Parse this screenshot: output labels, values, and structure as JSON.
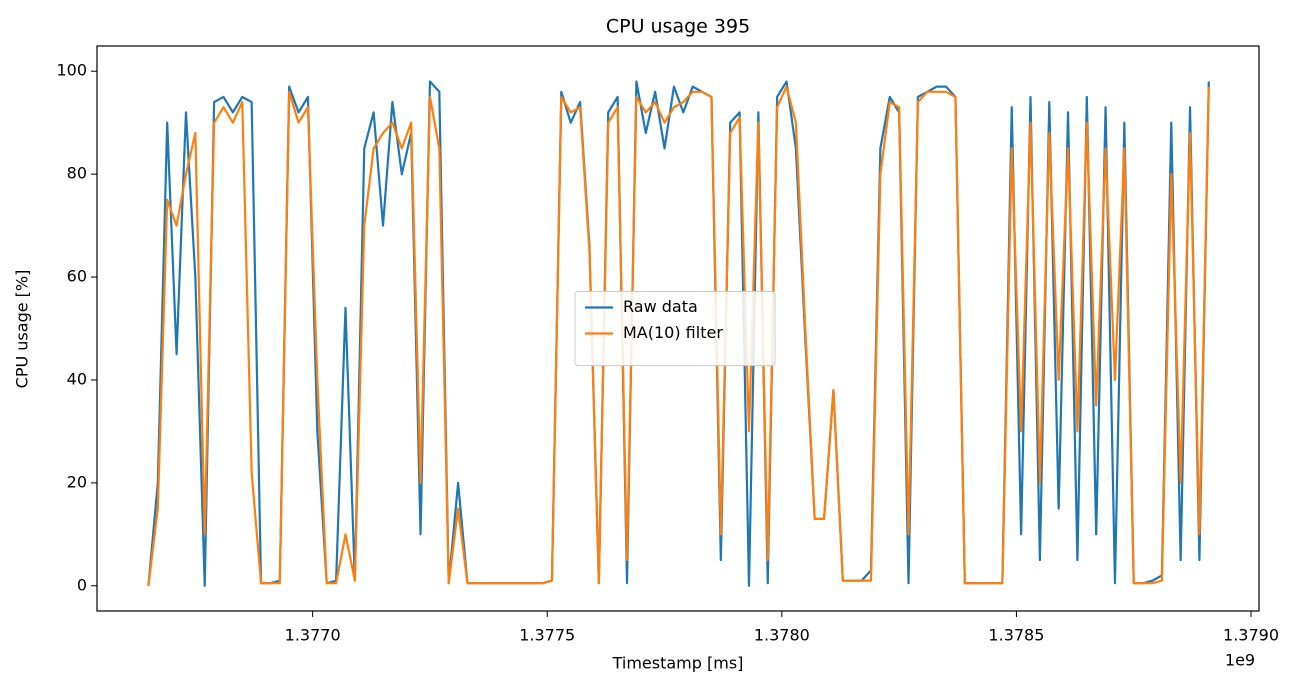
{
  "chart_data": {
    "type": "line",
    "title": "CPU usage 395",
    "x_label": "Timestamp [ms]",
    "y_label": "CPU usage [%]",
    "x_offset_label": "1e9",
    "x": [
      1376650000,
      1376670000,
      1376690000,
      1376710000,
      1376730000,
      1376750000,
      1376770000,
      1376790000,
      1376810000,
      1376830000,
      1376850000,
      1376870000,
      1376890000,
      1376910000,
      1376930000,
      1376950000,
      1376970000,
      1376990000,
      1377010000,
      1377030000,
      1377050000,
      1377070000,
      1377090000,
      1377110000,
      1377130000,
      1377150000,
      1377170000,
      1377190000,
      1377210000,
      1377230000,
      1377250000,
      1377270000,
      1377290000,
      1377310000,
      1377330000,
      1377350000,
      1377370000,
      1377390000,
      1377410000,
      1377430000,
      1377450000,
      1377470000,
      1377490000,
      1377510000,
      1377530000,
      1377550000,
      1377570000,
      1377590000,
      1377610000,
      1377630000,
      1377650000,
      1377670000,
      1377690000,
      1377710000,
      1377730000,
      1377750000,
      1377770000,
      1377790000,
      1377810000,
      1377830000,
      1377850000,
      1377870000,
      1377890000,
      1377910000,
      1377930000,
      1377950000,
      1377970000,
      1377990000,
      1378010000,
      1378030000,
      1378050000,
      1378070000,
      1378090000,
      1378110000,
      1378130000,
      1378150000,
      1378170000,
      1378190000,
      1378210000,
      1378230000,
      1378250000,
      1378270000,
      1378290000,
      1378310000,
      1378330000,
      1378350000,
      1378370000,
      1378390000,
      1378410000,
      1378430000,
      1378450000,
      1378470000,
      1378490000,
      1378510000,
      1378530000,
      1378550000,
      1378570000,
      1378590000,
      1378610000,
      1378630000,
      1378650000,
      1378670000,
      1378690000,
      1378710000,
      1378730000,
      1378750000,
      1378770000,
      1378790000,
      1378810000,
      1378830000,
      1378850000,
      1378870000,
      1378890000,
      1378910000
    ],
    "series": [
      {
        "name": "Raw data",
        "color": "#1f77b4",
        "values": [
          0,
          20,
          90,
          45,
          92,
          60,
          0,
          94,
          95,
          92,
          95,
          94,
          0.5,
          0.5,
          1,
          97,
          92,
          95,
          30,
          0.5,
          1,
          54,
          1,
          85,
          92,
          70,
          94,
          80,
          88,
          10,
          98,
          96,
          0.5,
          20,
          0.5,
          0.5,
          0.5,
          0.5,
          0.5,
          0.5,
          0.5,
          0.5,
          0.5,
          1,
          96,
          90,
          94,
          66,
          0.5,
          92,
          95,
          0.5,
          98,
          88,
          96,
          85,
          97,
          92,
          97,
          96,
          95,
          5,
          90,
          92,
          0,
          92,
          0.5,
          95,
          98,
          85,
          48,
          13,
          13,
          38,
          1,
          1,
          1,
          3,
          85,
          95,
          92,
          0.5,
          95,
          96,
          97,
          97,
          95,
          0.5,
          0.5,
          0.5,
          0.5,
          0.5,
          93,
          10,
          95,
          5,
          94,
          15,
          92,
          5,
          95,
          10,
          93,
          0.5,
          90,
          0.5,
          0.5,
          1,
          2,
          90,
          5,
          93,
          5,
          98
        ]
      },
      {
        "name": "MA(10) filter",
        "color": "#ff7f0e",
        "values": [
          0,
          15,
          75,
          70,
          80,
          88,
          10,
          90,
          93,
          90,
          94,
          22,
          0.5,
          0.5,
          0.5,
          96,
          90,
          93,
          40,
          0.5,
          0.5,
          10,
          1,
          70,
          85,
          88,
          90,
          85,
          90,
          20,
          95,
          85,
          0.5,
          15,
          0.5,
          0.5,
          0.5,
          0.5,
          0.5,
          0.5,
          0.5,
          0.5,
          0.5,
          1,
          95,
          92,
          93,
          65,
          0.5,
          90,
          93,
          5,
          95,
          92,
          94,
          90,
          93,
          94,
          96,
          96,
          95,
          10,
          88,
          91,
          30,
          90,
          5,
          93,
          97,
          90,
          50,
          13,
          13,
          38,
          1,
          1,
          1,
          1,
          80,
          94,
          93,
          10,
          94,
          96,
          96,
          96,
          95,
          0.5,
          0.5,
          0.5,
          0.5,
          0.5,
          85,
          30,
          90,
          20,
          88,
          40,
          85,
          30,
          90,
          35,
          85,
          40,
          85,
          0.5,
          0.5,
          0.5,
          1,
          80,
          20,
          88,
          10,
          97
        ]
      }
    ],
    "xlim": [
      1376540400,
      1379017000
    ],
    "xticks": [
      {
        "value": 1377000000,
        "label": "1.3770"
      },
      {
        "value": 1377500000,
        "label": "1.3775"
      },
      {
        "value": 1378000000,
        "label": "1.3780"
      },
      {
        "value": 1378500000,
        "label": "1.3785"
      },
      {
        "value": 1379000000,
        "label": "1.3790"
      }
    ],
    "ylim": [
      -4.9,
      104.9
    ],
    "yticks": [
      0,
      20,
      40,
      60,
      80,
      100
    ],
    "grid": false,
    "legend": "center"
  }
}
